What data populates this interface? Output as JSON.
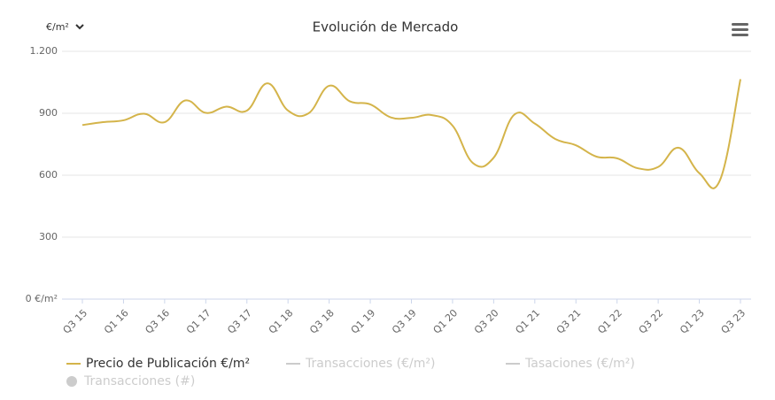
{
  "chart_data": {
    "type": "line",
    "title": "Evolución de Mercado",
    "unit_label": "€/m²",
    "categories": [
      "Q3 15",
      null,
      "Q1 16",
      null,
      "Q3 16",
      null,
      "Q1 17",
      null,
      "Q3 17",
      null,
      "Q1 18",
      null,
      "Q3 18",
      null,
      "Q1 19",
      null,
      "Q3 19",
      null,
      "Q1 20",
      null,
      "Q3 20",
      null,
      "Q1 21",
      null,
      "Q3 21",
      null,
      "Q1 22",
      null,
      "Q3 22",
      null,
      "Q1 23",
      null,
      "Q3 23"
    ],
    "series": [
      {
        "name": "Precio de Publicación €/m²",
        "color": "#d4b44a",
        "values": [
          843,
          857,
          866,
          898,
          857,
          962,
          902,
          932,
          913,
          1045,
          913,
          900,
          1033,
          958,
          943,
          880,
          878,
          891,
          840,
          658,
          685,
          893,
          850,
          775,
          745,
          690,
          682,
          634,
          640,
          733,
          610,
          575,
          1065
        ]
      },
      {
        "name": "Transacciones (€/m²)",
        "color": "#cccccc",
        "hidden": true,
        "values": [
          null,
          null,
          null,
          null,
          null,
          null,
          null,
          null,
          null,
          null,
          null,
          null,
          null,
          null,
          null,
          null,
          null,
          null,
          null,
          null,
          null,
          null,
          null,
          null,
          null,
          null,
          null,
          null,
          null,
          null,
          null,
          null,
          null
        ]
      },
      {
        "name": "Tasaciones (€/m²)",
        "color": "#cccccc",
        "hidden": true,
        "values": [
          null,
          null,
          null,
          null,
          null,
          null,
          null,
          null,
          null,
          null,
          null,
          null,
          null,
          null,
          null,
          null,
          null,
          null,
          null,
          null,
          null,
          null,
          null,
          null,
          null,
          null,
          null,
          null,
          null,
          null,
          null,
          null,
          null
        ]
      },
      {
        "name": "Transacciones (#)",
        "color": "#cccccc",
        "hidden": true,
        "marker": "circle",
        "values": [
          null,
          null,
          null,
          null,
          null,
          null,
          null,
          null,
          null,
          null,
          null,
          null,
          null,
          null,
          null,
          null,
          null,
          null,
          null,
          null,
          null,
          null,
          null,
          null,
          null,
          null,
          null,
          null,
          null,
          null,
          null,
          null,
          null
        ]
      }
    ],
    "ylim": [
      0,
      1200
    ],
    "yticks": [
      {
        "value": 0,
        "label": "0 €/m²"
      },
      300,
      600,
      900,
      {
        "value": 1200,
        "label": "1.200"
      }
    ],
    "grid": true
  }
}
